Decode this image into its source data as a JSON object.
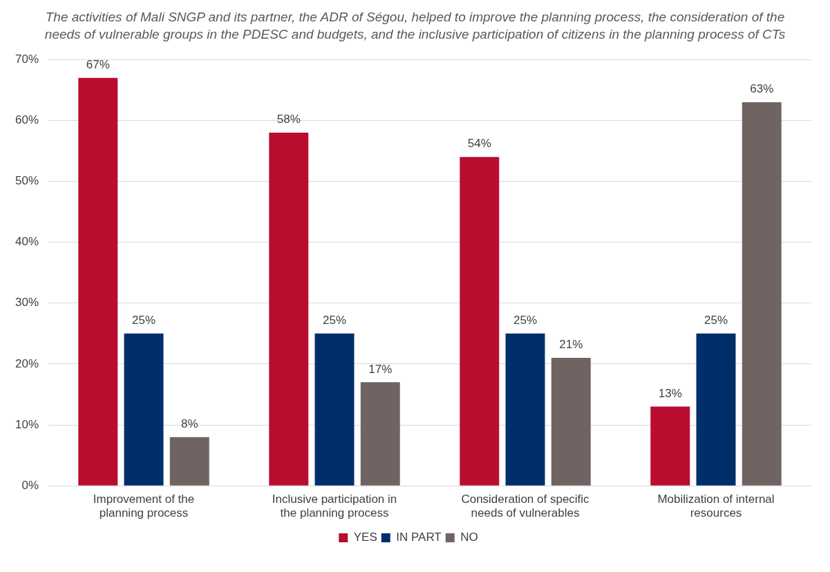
{
  "chart_data": {
    "type": "bar",
    "title": "The activities of Mali SNGP and its partner, the ADR of Ségou, helped to improve the planning process, the consideration of the needs of vulnerable groups in the PDESC and budgets, and the inclusive participation of citizens in the planning process of CTs",
    "categories": [
      "Improvement of the planning process",
      "Inclusive participation in the planning process",
      "Consideration of specific needs of vulnerables",
      "Mobilization of internal resources"
    ],
    "series": [
      {
        "name": "YES",
        "color": "#b90d30",
        "values": [
          67,
          58,
          54,
          13
        ],
        "value_labels": [
          "67%",
          "58%",
          "54%",
          "13%"
        ]
      },
      {
        "name": "IN PART",
        "color": "#002e6b",
        "values": [
          25,
          25,
          25,
          25
        ],
        "value_labels": [
          "25%",
          "25%",
          "25%",
          "25%"
        ]
      },
      {
        "name": "NO",
        "color": "#6f6461",
        "values": [
          8,
          17,
          21,
          63
        ],
        "value_labels": [
          "8%",
          "17%",
          "21%",
          "63%"
        ]
      }
    ],
    "ylim": [
      0,
      70
    ],
    "yticks": [
      {
        "value": 0,
        "label": "0%"
      },
      {
        "value": 10,
        "label": "10%"
      },
      {
        "value": 20,
        "label": "20%"
      },
      {
        "value": 30,
        "label": "30%"
      },
      {
        "value": 40,
        "label": "40%"
      },
      {
        "value": 50,
        "label": "50%"
      },
      {
        "value": 60,
        "label": "60%"
      },
      {
        "value": 70,
        "label": "70%"
      }
    ],
    "grid": "y",
    "legend": "bottom"
  }
}
